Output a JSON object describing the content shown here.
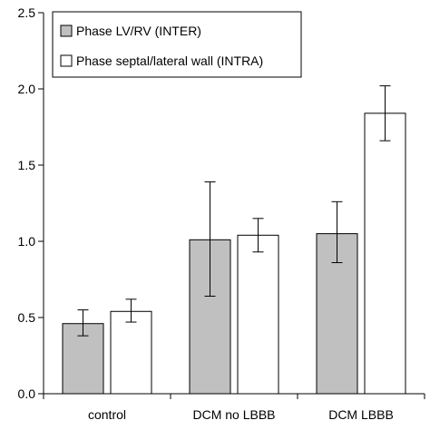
{
  "chart_data": {
    "type": "bar",
    "title": "",
    "xlabel": "",
    "ylabel": "",
    "ylim": [
      0,
      2.5
    ],
    "yticks": [
      "0.0",
      "0.5",
      "1.0",
      "1.5",
      "2.0",
      "2.5"
    ],
    "categories": [
      "control",
      "DCM no LBBB",
      "DCM LBBB"
    ],
    "series": [
      {
        "name": "Phase LV/RV (INTER)",
        "color": "#c0c0c0",
        "values": [
          0.46,
          1.01,
          1.05
        ],
        "err_low": [
          0.38,
          0.64,
          0.86
        ],
        "err_high": [
          0.55,
          1.39,
          1.26
        ]
      },
      {
        "name": "Phase septal/lateral wall (INTRA)",
        "color": "#ffffff",
        "values": [
          0.54,
          1.04,
          1.84
        ],
        "err_low": [
          0.47,
          0.93,
          1.66
        ],
        "err_high": [
          0.62,
          1.15,
          2.02
        ]
      }
    ],
    "legend_position": "top-left",
    "grid": false
  }
}
